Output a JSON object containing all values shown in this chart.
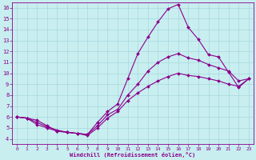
{
  "xlabel": "Windchill (Refroidissement éolien,°C)",
  "background_color": "#c8eef0",
  "line_color": "#8b008b",
  "grid_color": "#a8d8dc",
  "xlim": [
    -0.5,
    23.5
  ],
  "ylim": [
    3.5,
    16.5
  ],
  "xticks": [
    0,
    1,
    2,
    3,
    4,
    5,
    6,
    7,
    8,
    9,
    10,
    11,
    12,
    13,
    14,
    15,
    16,
    17,
    18,
    19,
    20,
    21,
    22,
    23
  ],
  "yticks": [
    4,
    5,
    6,
    7,
    8,
    9,
    10,
    11,
    12,
    13,
    14,
    15,
    16
  ],
  "lines": [
    {
      "x": [
        0,
        1,
        2,
        3,
        4,
        5,
        6,
        7,
        8,
        9,
        10,
        11,
        12,
        13,
        14,
        15,
        16,
        17,
        18,
        19,
        20,
        21,
        22,
        23
      ],
      "y": [
        6.0,
        5.9,
        5.7,
        5.2,
        4.7,
        4.6,
        4.5,
        4.4,
        5.5,
        6.5,
        7.2,
        9.5,
        11.8,
        13.3,
        14.7,
        15.9,
        16.3,
        14.2,
        13.1,
        11.7,
        11.5,
        10.1,
        8.7,
        9.5
      ]
    },
    {
      "x": [
        0,
        1,
        2,
        3,
        4,
        5,
        6,
        7,
        8,
        9,
        10,
        11,
        12,
        13,
        14,
        15,
        16,
        17,
        18,
        19,
        20,
        21,
        22,
        23
      ],
      "y": [
        6.0,
        5.9,
        5.5,
        5.1,
        4.8,
        4.6,
        4.5,
        4.4,
        5.2,
        6.2,
        6.7,
        8.0,
        9.0,
        10.2,
        11.0,
        11.5,
        11.8,
        11.4,
        11.2,
        10.8,
        10.5,
        10.2,
        9.3,
        9.5
      ]
    },
    {
      "x": [
        0,
        1,
        2,
        3,
        4,
        5,
        6,
        7,
        8,
        9,
        10,
        11,
        12,
        13,
        14,
        15,
        16,
        17,
        18,
        19,
        20,
        21,
        22,
        23
      ],
      "y": [
        6.0,
        5.9,
        5.3,
        5.0,
        4.7,
        4.6,
        4.5,
        4.3,
        5.0,
        5.9,
        6.5,
        7.5,
        8.2,
        8.8,
        9.3,
        9.7,
        10.0,
        9.8,
        9.7,
        9.5,
        9.3,
        9.0,
        8.8,
        9.5
      ]
    }
  ],
  "markersize": 2.0,
  "linewidth": 0.8
}
